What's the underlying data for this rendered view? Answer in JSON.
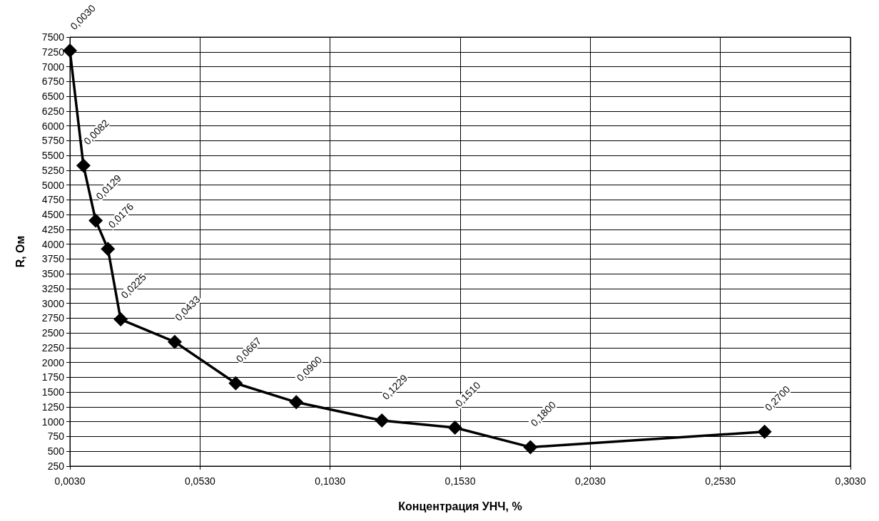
{
  "chart_data": {
    "type": "line",
    "xlabel": "Концентрация УНЧ, %",
    "ylabel": "R, Ом",
    "x": [
      0.003,
      0.0082,
      0.0129,
      0.0176,
      0.0225,
      0.0433,
      0.0667,
      0.09,
      0.1229,
      0.151,
      0.18,
      0.27
    ],
    "series": [
      {
        "color": "#000000",
        "values": [
          7270,
          5330,
          4400,
          3920,
          2730,
          2350,
          1650,
          1330,
          1020,
          900,
          570,
          830
        ]
      }
    ],
    "annotations": [
      {
        "text": "0,0030",
        "x": 0.003,
        "y": 7270
      },
      {
        "text": "0,0082",
        "x": 0.0082,
        "y": 5330
      },
      {
        "text": "0,0129",
        "x": 0.0129,
        "y": 4400
      },
      {
        "text": "0,0176",
        "x": 0.0176,
        "y": 3920
      },
      {
        "text": "0,0225",
        "x": 0.0225,
        "y": 2730
      },
      {
        "text": "0,0433",
        "x": 0.0433,
        "y": 2350
      },
      {
        "text": "0,0667",
        "x": 0.0667,
        "y": 1650
      },
      {
        "text": "0,0900",
        "x": 0.09,
        "y": 1330
      },
      {
        "text": "0,1229",
        "x": 0.1229,
        "y": 1020
      },
      {
        "text": "0,1510",
        "x": 0.151,
        "y": 900
      },
      {
        "text": "0,1800",
        "x": 0.18,
        "y": 570
      },
      {
        "text": "0,2700",
        "x": 0.27,
        "y": 830
      }
    ],
    "xlim": [
      0.003,
      0.303
    ],
    "xticks": [
      {
        "value": 0.003,
        "label": "0,0030"
      },
      {
        "value": 0.053,
        "label": "0,0530"
      },
      {
        "value": 0.103,
        "label": "0,1030"
      },
      {
        "value": 0.153,
        "label": "0,1530"
      },
      {
        "value": 0.203,
        "label": "0,2030"
      },
      {
        "value": 0.253,
        "label": "0,2530"
      },
      {
        "value": 0.303,
        "label": "0,3030"
      }
    ],
    "ylim": [
      250,
      7500
    ],
    "yticks": [
      250,
      500,
      750,
      1000,
      1250,
      1500,
      1750,
      2000,
      2250,
      2500,
      2750,
      3000,
      3250,
      3500,
      3750,
      4000,
      4250,
      4500,
      4750,
      5000,
      5250,
      5500,
      5750,
      6000,
      6250,
      6500,
      6750,
      7000,
      7250,
      7500
    ],
    "grid": true,
    "marker": "diamond",
    "line_style": "solid"
  }
}
